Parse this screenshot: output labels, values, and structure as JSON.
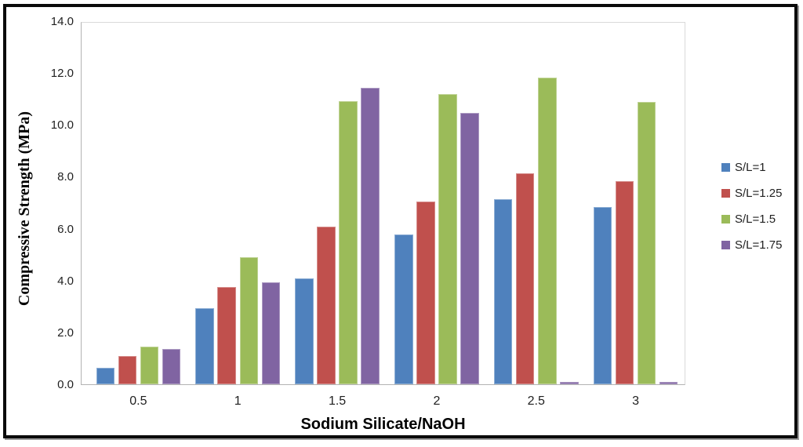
{
  "chart_data": {
    "type": "bar",
    "title": "",
    "xlabel": "Sodium Silicate/NaOH",
    "ylabel": "Compressive Strength (MPa)",
    "categories": [
      "0.5",
      "1",
      "1.5",
      "2",
      "2.5",
      "3"
    ],
    "series": [
      {
        "name": "S/L=1",
        "color": "#4F81BD",
        "values": [
          0.65,
          2.95,
          4.1,
          5.8,
          7.15,
          6.85
        ]
      },
      {
        "name": "S/L=1.25",
        "color": "#C0504D",
        "values": [
          1.1,
          3.75,
          6.1,
          7.05,
          8.15,
          7.85
        ]
      },
      {
        "name": "S/L=1.5",
        "color": "#9BBB59",
        "values": [
          1.45,
          4.9,
          10.95,
          11.2,
          11.85,
          10.9
        ]
      },
      {
        "name": "S/L=1.75",
        "color": "#8064A2",
        "values": [
          1.35,
          3.95,
          11.45,
          10.5,
          0.1,
          0.1
        ]
      }
    ],
    "ylim": [
      0,
      14
    ],
    "y_tick_labels": [
      "0.0",
      "2.0",
      "4.0",
      "6.0",
      "8.0",
      "10.0",
      "12.0",
      "14.0"
    ],
    "grid": false,
    "legend_position": "right",
    "frame_border_color": "#0a0a0a",
    "axis_line_color": "#b3b3b3",
    "plot_border_color": "#d9d9d9"
  }
}
